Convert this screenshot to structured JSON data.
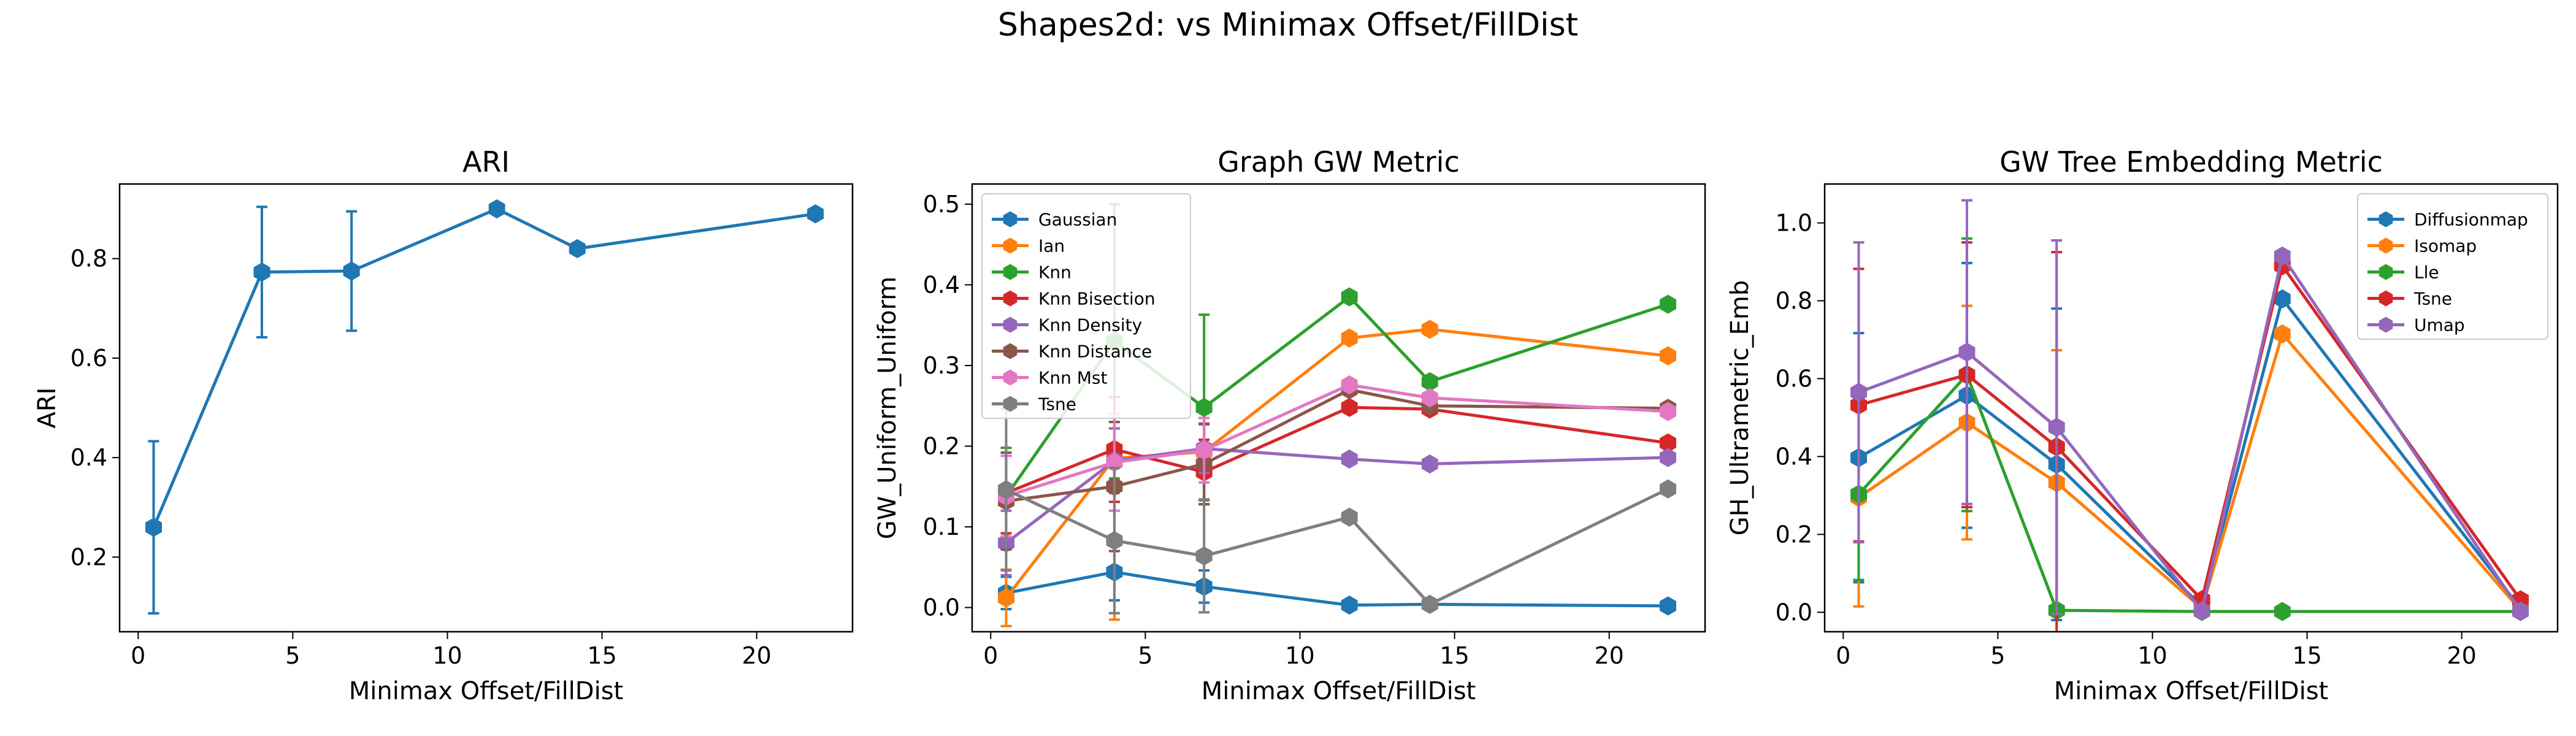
{
  "figure": {
    "suptitle": "Shapes2d: vs Minimax Offset/FillDist"
  },
  "colors": {
    "blue": "#1f77b4",
    "orange": "#ff7f0e",
    "green": "#2ca02c",
    "red": "#d62728",
    "purple": "#9467bd",
    "brown": "#8c564b",
    "pink": "#e377c2",
    "gray": "#7f7f7f"
  },
  "chart_data": [
    {
      "type": "line",
      "title": "ARI",
      "xlabel": "Minimax Offset/FillDist",
      "ylabel": "ARI",
      "xlim": [
        -0.6,
        23.1
      ],
      "ylim": [
        0.05,
        0.95
      ],
      "xticks": [
        0,
        5,
        10,
        15,
        20
      ],
      "yticks": [
        0.2,
        0.4,
        0.6,
        0.8
      ],
      "ytick_decimals": 1,
      "grid": false,
      "legend": null,
      "x": [
        0.5,
        4.0,
        6.9,
        11.6,
        14.2,
        21.9
      ],
      "series": [
        {
          "name": "",
          "color": "#1f77b4",
          "values": [
            0.26,
            0.773,
            0.775,
            0.9,
            0.82,
            0.89
          ],
          "err": [
            0.173,
            0.131,
            0.12,
            0,
            0,
            0
          ]
        }
      ]
    },
    {
      "type": "line",
      "title": "Graph GW Metric",
      "xlabel": "Minimax Offset/FillDist",
      "ylabel": "GW_Uniform_Uniform",
      "xlim": [
        -0.6,
        23.1
      ],
      "ylim": [
        -0.03,
        0.525
      ],
      "xticks": [
        0,
        5,
        10,
        15,
        20
      ],
      "yticks": [
        0.0,
        0.1,
        0.2,
        0.3,
        0.4,
        0.5
      ],
      "ytick_decimals": 1,
      "grid": false,
      "legend": "top-left",
      "x": [
        0.5,
        4.0,
        6.9,
        11.6,
        14.2,
        21.9
      ],
      "series": [
        {
          "name": "Gaussian",
          "color": "#1f77b4",
          "values": [
            0.018,
            0.044,
            0.026,
            0.003,
            0.004,
            0.002
          ],
          "err": [
            0.02,
            0.035,
            0.02,
            0,
            0,
            0
          ]
        },
        {
          "name": "Ian",
          "color": "#ff7f0e",
          "values": [
            0.012,
            0.185,
            0.193,
            0.334,
            0.345,
            0.312
          ],
          "err": [
            0.035,
            0.2,
            0.06,
            0,
            0,
            0
          ]
        },
        {
          "name": "Knn",
          "color": "#2ca02c",
          "values": [
            0.138,
            0.33,
            0.248,
            0.385,
            0.28,
            0.376
          ],
          "err": [
            0.06,
            0.17,
            0.115,
            0,
            0,
            0
          ]
        },
        {
          "name": "Knn Bisection",
          "color": "#d62728",
          "values": [
            0.142,
            0.196,
            0.168,
            0.248,
            0.246,
            0.204
          ],
          "err": [
            0.05,
            0.065,
            0.04,
            0,
            0,
            0
          ]
        },
        {
          "name": "Knn Density",
          "color": "#9467bd",
          "values": [
            0.08,
            0.182,
            0.197,
            0.184,
            0.178,
            0.186
          ],
          "err": [
            0.04,
            0.04,
            0.03,
            0,
            0,
            0
          ]
        },
        {
          "name": "Knn Distance",
          "color": "#8c564b",
          "values": [
            0.132,
            0.15,
            0.178,
            0.27,
            0.25,
            0.247
          ],
          "err": [
            0.06,
            0.08,
            0.05,
            0,
            0,
            0
          ]
        },
        {
          "name": "Knn Mst",
          "color": "#e377c2",
          "values": [
            0.138,
            0.18,
            0.195,
            0.276,
            0.26,
            0.243
          ],
          "err": [
            0.05,
            0.06,
            0.04,
            0,
            0,
            0
          ]
        },
        {
          "name": "Tsne",
          "color": "#7f7f7f",
          "values": [
            0.146,
            0.083,
            0.064,
            0.112,
            0.004,
            0.147
          ],
          "err": [
            0.1,
            0.09,
            0.07,
            0,
            0,
            0
          ]
        }
      ]
    },
    {
      "type": "line",
      "title": "GW Tree Embedding Metric",
      "xlabel": "Minimax Offset/FillDist",
      "ylabel": "GH_Ultrametric_Emb",
      "xlim": [
        -0.6,
        23.1
      ],
      "ylim": [
        -0.05,
        1.1
      ],
      "xticks": [
        0,
        5,
        10,
        15,
        20
      ],
      "yticks": [
        0.0,
        0.2,
        0.4,
        0.6,
        0.8,
        1.0
      ],
      "ytick_decimals": 1,
      "grid": false,
      "legend": "top-right",
      "x": [
        0.5,
        4.0,
        6.9,
        11.6,
        14.2,
        21.9
      ],
      "series": [
        {
          "name": "Diffusionmap",
          "color": "#1f77b4",
          "values": [
            0.397,
            0.557,
            0.38,
            0.015,
            0.805,
            0.01
          ],
          "err": [
            0.32,
            0.34,
            0.4,
            0,
            0,
            0
          ]
        },
        {
          "name": "Isomap",
          "color": "#ff7f0e",
          "values": [
            0.295,
            0.487,
            0.333,
            0.01,
            0.715,
            0.005
          ],
          "err": [
            0.28,
            0.3,
            0.34,
            0,
            0,
            0
          ]
        },
        {
          "name": "Lle",
          "color": "#2ca02c",
          "values": [
            0.303,
            0.61,
            0.005,
            0.002,
            0.002,
            0.002
          ],
          "err": [
            0.22,
            0.35,
            0,
            0,
            0,
            0
          ]
        },
        {
          "name": "Tsne",
          "color": "#d62728",
          "values": [
            0.532,
            0.61,
            0.425,
            0.032,
            0.89,
            0.032
          ],
          "err": [
            0.35,
            0.34,
            0.5,
            0,
            0,
            0
          ]
        },
        {
          "name": "Umap",
          "color": "#9467bd",
          "values": [
            0.565,
            0.668,
            0.475,
            0.003,
            0.915,
            0.003
          ],
          "err": [
            0.385,
            0.39,
            0.48,
            0,
            0,
            0
          ]
        }
      ]
    }
  ]
}
